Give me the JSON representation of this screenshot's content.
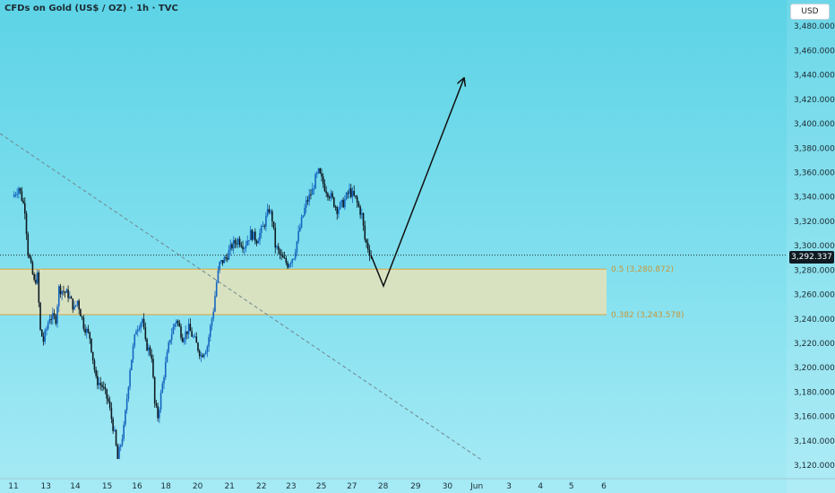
{
  "title": "CFDs on Gold (US$ / OZ) · 1h · TVC",
  "currency_button": "USD",
  "current_price_label": "3,292.337",
  "colors": {
    "up": "#1565c0",
    "down": "#0d1a22",
    "fib_zone": "#e6e2b8",
    "fib_line": "#d9a441",
    "fib_label": "#c8963a",
    "trend_dash": "#6f8790",
    "projection": "#111111"
  },
  "chart_data": {
    "type": "candlestick",
    "title": "CFDs on Gold (US$ / OZ) · 1h · TVC",
    "ylim": [
      3112,
      3500
    ],
    "y_ticks": [
      "3,480.000",
      "3,460.000",
      "3,440.000",
      "3,420.000",
      "3,400.000",
      "3,380.000",
      "3,360.000",
      "3,340.000",
      "3,320.000",
      "3,300.000",
      "3,280.000",
      "3,260.000",
      "3,240.000",
      "3,220.000",
      "3,200.000",
      "3,180.000",
      "3,160.000",
      "3,140.000",
      "3,120.000"
    ],
    "y_tick_values": [
      3480,
      3460,
      3440,
      3420,
      3400,
      3380,
      3360,
      3340,
      3320,
      3300,
      3280,
      3260,
      3240,
      3220,
      3200,
      3180,
      3160,
      3140,
      3120
    ],
    "x_ticks": [
      {
        "label": "11",
        "t": 0.3
      },
      {
        "label": "13",
        "t": 10.8
      },
      {
        "label": "14",
        "t": 20.3
      },
      {
        "label": "15",
        "t": 30.6
      },
      {
        "label": "16",
        "t": 40.3
      },
      {
        "label": "18",
        "t": 49.6
      },
      {
        "label": "20",
        "t": 59.9
      },
      {
        "label": "21",
        "t": 70.2
      },
      {
        "label": "22",
        "t": 80.5
      },
      {
        "label": "23",
        "t": 90.1
      },
      {
        "label": "25",
        "t": 99.9
      },
      {
        "label": "27",
        "t": 109.8
      },
      {
        "label": "28",
        "t": 119.9
      },
      {
        "label": "29",
        "t": 130.4
      },
      {
        "label": "30",
        "t": 140.7
      },
      {
        "label": "Jun",
        "t": 150.2
      },
      {
        "label": "3",
        "t": 160.6
      },
      {
        "label": "4",
        "t": 170.8
      },
      {
        "label": "5",
        "t": 180.8
      },
      {
        "label": "6",
        "t": 191.3
      }
    ],
    "price_path": [
      [
        0,
        3340
      ],
      [
        2,
        3348
      ],
      [
        4,
        3330
      ],
      [
        5,
        3295
      ],
      [
        7,
        3270
      ],
      [
        8,
        3275
      ],
      [
        9,
        3230
      ],
      [
        10,
        3222
      ],
      [
        12,
        3242
      ],
      [
        14,
        3240
      ],
      [
        15,
        3265
      ],
      [
        18,
        3260
      ],
      [
        20,
        3248
      ],
      [
        21,
        3255
      ],
      [
        23,
        3235
      ],
      [
        25,
        3225
      ],
      [
        27,
        3190
      ],
      [
        29,
        3185
      ],
      [
        31,
        3172
      ],
      [
        33,
        3145
      ],
      [
        34,
        3125
      ],
      [
        36,
        3150
      ],
      [
        38,
        3200
      ],
      [
        40,
        3232
      ],
      [
        42,
        3240
      ],
      [
        43,
        3220
      ],
      [
        45,
        3210
      ],
      [
        46,
        3170
      ],
      [
        47,
        3160
      ],
      [
        49,
        3195
      ],
      [
        51,
        3225
      ],
      [
        53,
        3240
      ],
      [
        55,
        3225
      ],
      [
        57,
        3232
      ],
      [
        59,
        3222
      ],
      [
        61,
        3210
      ],
      [
        63,
        3218
      ],
      [
        65,
        3248
      ],
      [
        66,
        3270
      ],
      [
        67,
        3285
      ],
      [
        69,
        3290
      ],
      [
        71,
        3300
      ],
      [
        73,
        3305
      ],
      [
        75,
        3300
      ],
      [
        77,
        3310
      ],
      [
        79,
        3305
      ],
      [
        81,
        3315
      ],
      [
        83,
        3330
      ],
      [
        84,
        3322
      ],
      [
        85,
        3300
      ],
      [
        87,
        3290
      ],
      [
        89,
        3285
      ],
      [
        91,
        3292
      ],
      [
        93,
        3315
      ],
      [
        95,
        3335
      ],
      [
        97,
        3345
      ],
      [
        98,
        3355
      ],
      [
        99,
        3360
      ],
      [
        101,
        3348
      ],
      [
        103,
        3340
      ],
      [
        105,
        3330
      ],
      [
        107,
        3335
      ],
      [
        109,
        3345
      ],
      [
        111,
        3338
      ],
      [
        113,
        3325
      ],
      [
        114,
        3305
      ],
      [
        116,
        3292
      ]
    ],
    "current_price": 3292.337,
    "fib_levels": [
      {
        "ratio": "0.5",
        "value": 3280.872,
        "label": "0.5 (3,280.872)"
      },
      {
        "ratio": "0.382",
        "value": 3243.578,
        "label": "0.382 (3,243.578)"
      }
    ],
    "projection": [
      [
        116,
        3292
      ],
      [
        120,
        3267
      ],
      [
        146,
        3437
      ]
    ],
    "trendline": [
      [
        0,
        3392
      ],
      [
        152,
        3124
      ]
    ],
    "grid": false,
    "legend": "none"
  }
}
